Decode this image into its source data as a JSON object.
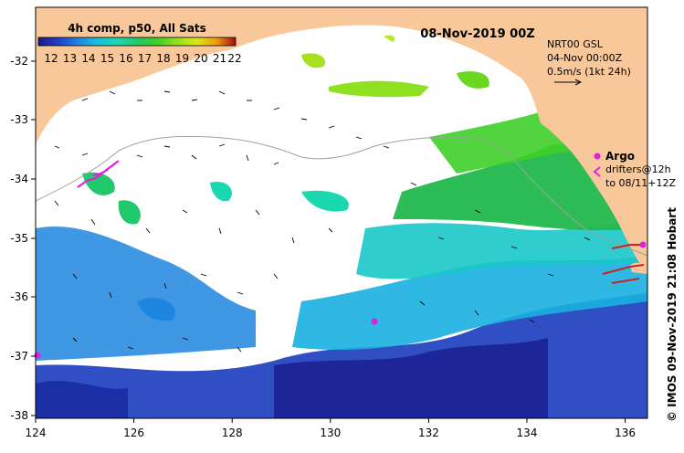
{
  "header": {
    "title": "08-Nov-2019 00Z",
    "product": "4h comp, p50, All Sats"
  },
  "colorbar": {
    "ticks": [
      "12",
      "13",
      "14",
      "15",
      "16",
      "17",
      "18",
      "19",
      "20",
      "21",
      "22"
    ],
    "colors": [
      "#1a1a8c",
      "#1f3fc8",
      "#1f86e0",
      "#18c0e0",
      "#1bd8b0",
      "#22c86c",
      "#3fcf2a",
      "#8fe020",
      "#d8e818",
      "#f0a010",
      "#d84010",
      "#a00c0c"
    ]
  },
  "current_legend": {
    "source": "NRT00 GSL",
    "date": "04-Nov 00:00Z",
    "scale": "0.5m/s (1kt 24h)"
  },
  "markers": {
    "argo_label": "Argo",
    "drifters_line1": "drifters@12h",
    "drifters_line2": "to 08/11+12Z",
    "argo_color": "#e020e0",
    "drifter_color": "#e020e0"
  },
  "axes": {
    "x_ticks": [
      "124",
      "126",
      "128",
      "130",
      "132",
      "134",
      "136"
    ],
    "y_ticks": [
      "-32",
      "-33",
      "-34",
      "-35",
      "-36",
      "-37",
      "-38"
    ],
    "x_range": [
      124,
      136.5
    ],
    "y_range": [
      -38.1,
      -31.3
    ]
  },
  "credit": "© IMOS 09-Nov-2019 21:08 Hobart",
  "colors": {
    "land": "#f9c89a",
    "ocean_blank": "#ffffff",
    "frame": "#000000"
  }
}
